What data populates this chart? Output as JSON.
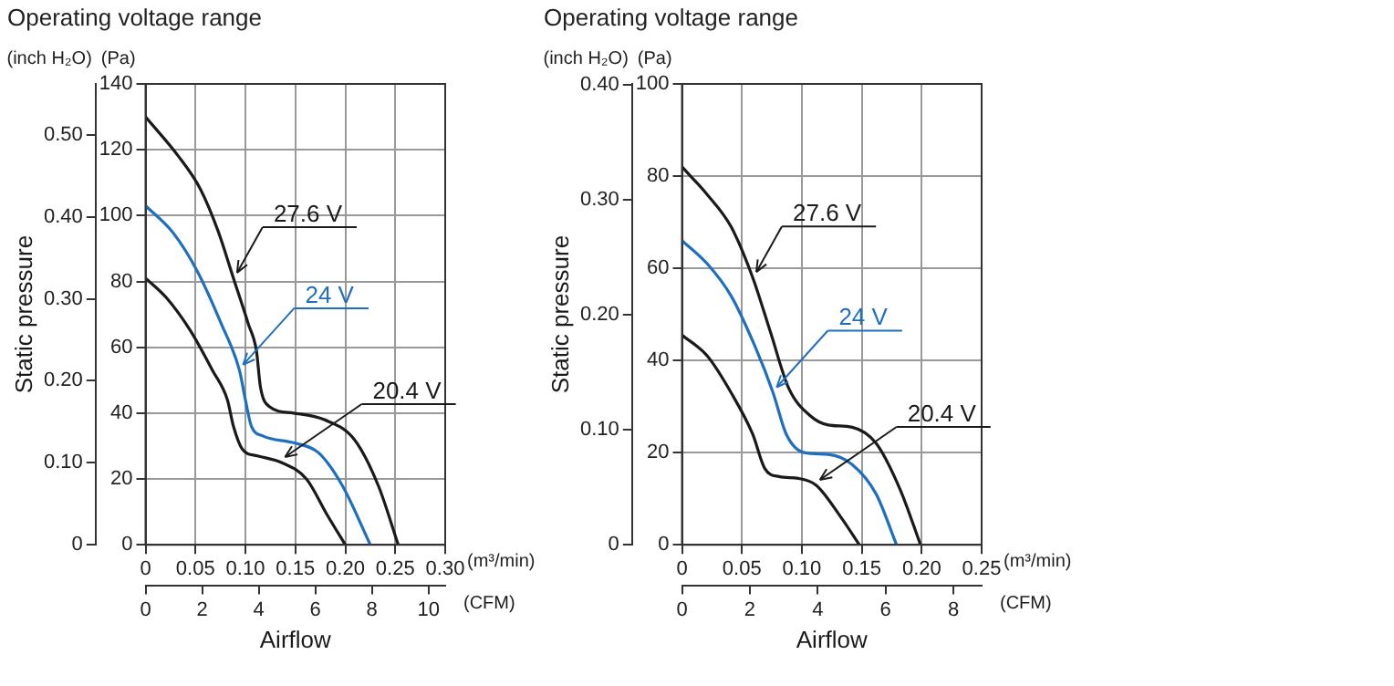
{
  "chart_data": [
    {
      "type": "line",
      "title": "Operating voltage range",
      "xlabel": "Airflow",
      "ylabel": "Static pressure",
      "y2label": "(Pa)",
      "x2label": "(CFM)",
      "xlim": [
        0,
        0.3
      ],
      "xticks": [
        0,
        {
          "value": 0.05,
          "label": "0.05"
        },
        {
          "value": 0.1,
          "label": "0.10"
        },
        {
          "value": 0.15,
          "label": "0.15"
        },
        {
          "value": 0.2,
          "label": "0.20"
        },
        {
          "value": 0.25,
          "label": "0.25"
        },
        {
          "value": 0.3,
          "label": "0.30"
        }
      ],
      "x2lim": [
        0,
        10.59
      ],
      "x2ticks": [
        0,
        2,
        4,
        6,
        8,
        10
      ],
      "y2lim": [
        0,
        140
      ],
      "y2ticks": [
        0,
        20,
        40,
        60,
        80,
        100,
        120,
        140
      ],
      "ylim": [
        0,
        0.562
      ],
      "yticks": [
        0,
        {
          "value": 0.1,
          "label": "0.10"
        },
        {
          "value": 0.2,
          "label": "0.20"
        },
        {
          "value": 0.3,
          "label": "0.30"
        },
        {
          "value": 0.4,
          "label": "0.40"
        },
        {
          "value": 0.5,
          "label": "0.50"
        }
      ],
      "grid": true,
      "legend": false,
      "marker": "none",
      "line_style": "solid",
      "annotations": [
        "(inch H₂O)",
        "(m³/min)"
      ],
      "series": [
        {
          "name": "27.6 V",
          "axis": "y2",
          "color": "#1a1a1a",
          "x": [
            0,
            0.033,
            0.055,
            0.073,
            0.088,
            0.103,
            0.111,
            0.115,
            0.124,
            0.148,
            0.179,
            0.209,
            0.233,
            0.253
          ],
          "values": [
            130,
            118,
            108,
            95,
            81,
            67,
            59,
            48,
            42,
            40,
            38,
            32,
            18,
            0
          ]
        },
        {
          "name": "24 V",
          "axis": "y2",
          "color": "#1f6fc0",
          "x": [
            0,
            0.027,
            0.052,
            0.076,
            0.094,
            0.1,
            0.106,
            0.118,
            0.148,
            0.173,
            0.197,
            0.225
          ],
          "values": [
            103,
            95,
            83,
            67,
            53,
            44,
            36,
            33,
            31,
            28,
            18,
            0
          ]
        },
        {
          "name": "20.4 V",
          "axis": "y2",
          "color": "#1a1a1a",
          "x": [
            0,
            0.021,
            0.045,
            0.067,
            0.082,
            0.088,
            0.097,
            0.112,
            0.136,
            0.161,
            0.182,
            0.2
          ],
          "values": [
            81,
            75,
            65,
            53,
            44,
            36,
            29,
            27,
            25,
            20,
            9,
            0
          ]
        }
      ]
    },
    {
      "type": "line",
      "title": "Operating voltage range",
      "xlabel": "Airflow",
      "ylabel": "Static pressure",
      "y2label": "(Pa)",
      "x2label": "(CFM)",
      "xlim": [
        0,
        0.25
      ],
      "xticks": [
        0,
        {
          "value": 0.05,
          "label": "0.05"
        },
        {
          "value": 0.1,
          "label": "0.10"
        },
        {
          "value": 0.15,
          "label": "0.15"
        },
        {
          "value": 0.2,
          "label": "0.20"
        },
        {
          "value": 0.25,
          "label": "0.25"
        }
      ],
      "x2lim": [
        0,
        8.83
      ],
      "x2ticks": [
        0,
        2,
        4,
        6,
        8
      ],
      "y2lim": [
        0,
        100
      ],
      "y2ticks": [
        0,
        20,
        40,
        60,
        80,
        100
      ],
      "ylim": [
        0,
        0.401
      ],
      "yticks": [
        0,
        {
          "value": 0.1,
          "label": "0.10"
        },
        {
          "value": 0.2,
          "label": "0.20"
        },
        {
          "value": 0.3,
          "label": "0.30"
        },
        {
          "value": 0.4,
          "label": "0.40"
        }
      ],
      "grid": true,
      "legend": false,
      "marker": "none",
      "line_style": "solid",
      "annotations": [
        "(inch H₂O)",
        "(m³/min)"
      ],
      "series": [
        {
          "name": "27.6 V",
          "axis": "y2",
          "color": "#1a1a1a",
          "x": [
            0,
            0.021,
            0.041,
            0.059,
            0.074,
            0.089,
            0.107,
            0.122,
            0.142,
            0.162,
            0.182,
            0.199
          ],
          "values": [
            82,
            76,
            69,
            58,
            46,
            34,
            28,
            26,
            25.5,
            22,
            12,
            0
          ]
        },
        {
          "name": "24 V",
          "axis": "y2",
          "color": "#1f6fc0",
          "x": [
            0,
            0.021,
            0.041,
            0.061,
            0.076,
            0.087,
            0.102,
            0.122,
            0.142,
            0.162,
            0.179
          ],
          "values": [
            66,
            61,
            54,
            43,
            33,
            24,
            20,
            19.6,
            17.4,
            11,
            0
          ]
        },
        {
          "name": "20.4 V",
          "axis": "y2",
          "color": "#1a1a1a",
          "x": [
            0,
            0.021,
            0.041,
            0.059,
            0.069,
            0.081,
            0.097,
            0.112,
            0.132,
            0.148
          ],
          "values": [
            45.5,
            41,
            33,
            24,
            16.6,
            14.8,
            14.4,
            12.9,
            6.2,
            0
          ]
        }
      ]
    }
  ]
}
